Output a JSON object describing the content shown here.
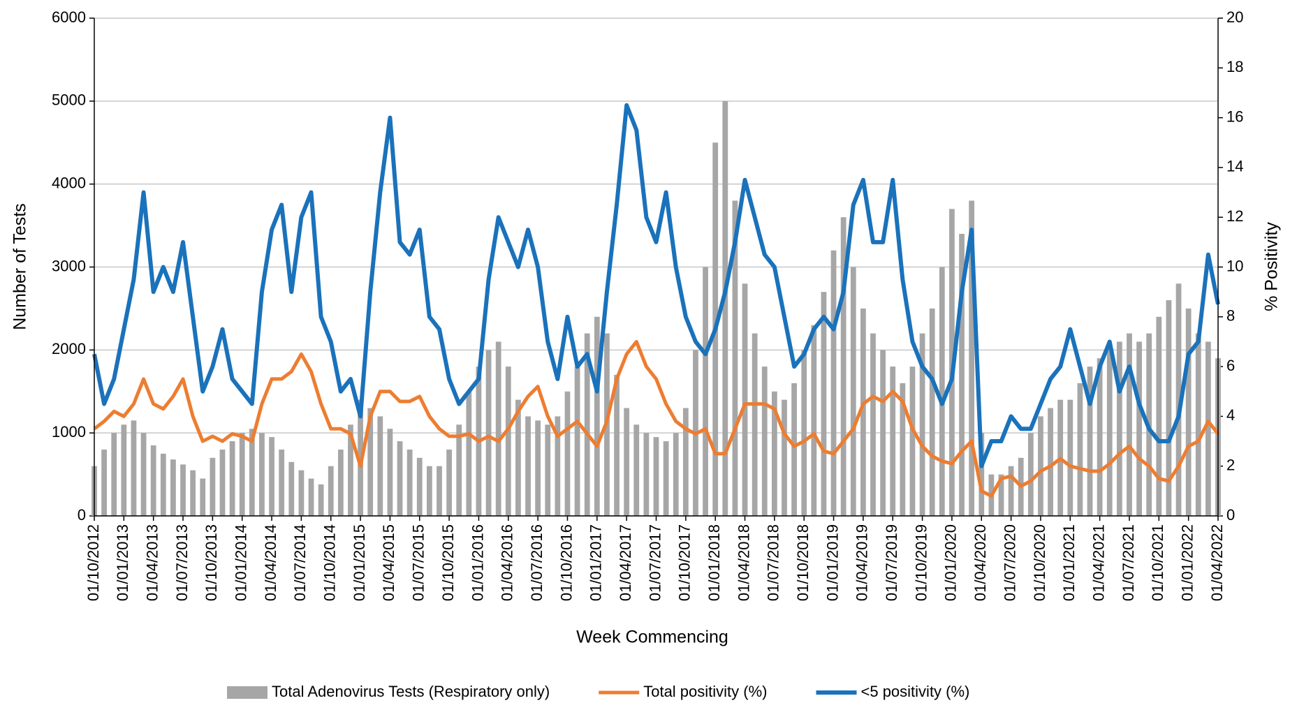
{
  "chart_data": {
    "type": "bar",
    "x_label": "Week Commencing",
    "y_label": "Number of Tests",
    "y2_label": "% Positivity",
    "categories": [
      "01/10/2012",
      null,
      null,
      "01/01/2013",
      null,
      null,
      "01/04/2013",
      null,
      null,
      "01/07/2013",
      null,
      null,
      "01/10/2013",
      null,
      null,
      "01/01/2014",
      null,
      null,
      "01/04/2014",
      null,
      null,
      "01/07/2014",
      null,
      null,
      "01/10/2014",
      null,
      null,
      "01/01/2015",
      null,
      null,
      "01/04/2015",
      null,
      null,
      "01/07/2015",
      null,
      null,
      "01/10/2015",
      null,
      null,
      "01/01/2016",
      null,
      null,
      "01/04/2016",
      null,
      null,
      "01/07/2016",
      null,
      null,
      "01/10/2016",
      null,
      null,
      "01/01/2017",
      null,
      null,
      "01/04/2017",
      null,
      null,
      "01/07/2017",
      null,
      null,
      "01/10/2017",
      null,
      null,
      "01/01/2018",
      null,
      null,
      "01/04/2018",
      null,
      null,
      "01/07/2018",
      null,
      null,
      "01/10/2018",
      null,
      null,
      "01/01/2019",
      null,
      null,
      "01/04/2019",
      null,
      null,
      "01/07/2019",
      null,
      null,
      "01/10/2019",
      null,
      null,
      "01/01/2020",
      null,
      null,
      "01/04/2020",
      null,
      null,
      "01/07/2020",
      null,
      null,
      "01/10/2020",
      null,
      null,
      "01/01/2021",
      null,
      null,
      "01/04/2021",
      null,
      null,
      "01/07/2021",
      null,
      null,
      "01/10/2021",
      null,
      null,
      "01/01/2022",
      null,
      null,
      "01/04/2022"
    ],
    "series": [
      {
        "name": "Total Adenovirus Tests (Respiratory only)",
        "color": "#a6a6a6",
        "type": "bar",
        "values": [
          600,
          800,
          1000,
          1100,
          1150,
          1000,
          850,
          750,
          680,
          620,
          550,
          450,
          700,
          800,
          900,
          1000,
          1050,
          1000,
          950,
          800,
          650,
          550,
          450,
          380,
          600,
          800,
          1100,
          1400,
          1300,
          1200,
          1050,
          900,
          800,
          700,
          600,
          600,
          800,
          1100,
          1500,
          1800,
          2000,
          2100,
          1800,
          1400,
          1200,
          1150,
          1100,
          1200,
          1500,
          1800,
          2200,
          2400,
          2200,
          1700,
          1300,
          1100,
          1000,
          950,
          900,
          1000,
          1300,
          2000,
          3000,
          4500,
          5000,
          3800,
          2800,
          2200,
          1800,
          1500,
          1400,
          1600,
          2000,
          2300,
          2700,
          3200,
          3600,
          3000,
          2500,
          2200,
          2000,
          1800,
          1600,
          1800,
          2200,
          2500,
          3000,
          3700,
          3400,
          3800,
          1000,
          500,
          500,
          600,
          700,
          1000,
          1200,
          1300,
          1400,
          1400,
          1600,
          1800,
          1900,
          2000,
          2100,
          2200,
          2100,
          2200,
          2400,
          2600,
          2800,
          2500,
          2200,
          2100,
          1900
        ]
      },
      {
        "name": "Total positivity (%)",
        "color": "#ed7d31",
        "type": "line",
        "axis": "y2",
        "values": [
          3.5,
          3.8,
          4.2,
          4.0,
          4.5,
          5.5,
          4.5,
          4.3,
          4.8,
          5.5,
          4.0,
          3.0,
          3.2,
          3.0,
          3.3,
          3.2,
          3.0,
          4.5,
          5.5,
          5.5,
          5.8,
          6.5,
          5.8,
          4.5,
          3.5,
          3.5,
          3.3,
          2.0,
          4.0,
          5.0,
          5.0,
          4.6,
          4.6,
          4.8,
          4.0,
          3.5,
          3.2,
          3.2,
          3.3,
          3.0,
          3.2,
          3.0,
          3.5,
          4.2,
          4.8,
          5.2,
          4.0,
          3.2,
          3.5,
          3.8,
          3.3,
          2.8,
          3.8,
          5.5,
          6.5,
          7.0,
          6.0,
          5.5,
          4.5,
          3.8,
          3.5,
          3.3,
          3.5,
          2.5,
          2.5,
          3.5,
          4.5,
          4.5,
          4.5,
          4.3,
          3.3,
          2.8,
          3.0,
          3.3,
          2.6,
          2.5,
          3.0,
          3.5,
          4.5,
          4.8,
          4.6,
          5.0,
          4.6,
          3.5,
          2.8,
          2.4,
          2.2,
          2.1,
          2.6,
          3.0,
          1.0,
          0.8,
          1.5,
          1.6,
          1.2,
          1.4,
          1.8,
          2.0,
          2.3,
          2.0,
          1.9,
          1.8,
          1.8,
          2.1,
          2.5,
          2.8,
          2.3,
          2.0,
          1.5,
          1.4,
          2.0,
          2.8,
          3.0,
          3.8,
          3.3
        ]
      },
      {
        "name": "<5 positivity (%)",
        "color": "#1a72bb",
        "type": "line",
        "axis": "y2",
        "values": [
          6.5,
          4.5,
          5.5,
          7.5,
          9.5,
          13.0,
          9.0,
          10.0,
          9.0,
          11.0,
          8.0,
          5.0,
          6.0,
          7.5,
          5.5,
          5.0,
          4.5,
          9.0,
          11.5,
          12.5,
          9.0,
          12.0,
          13.0,
          8.0,
          7.0,
          5.0,
          5.5,
          4.0,
          9.0,
          13.0,
          16.0,
          11.0,
          10.5,
          11.5,
          8.0,
          7.5,
          5.5,
          4.5,
          5.0,
          5.5,
          9.5,
          12.0,
          11.0,
          10.0,
          11.5,
          10.0,
          7.0,
          5.5,
          8.0,
          6.0,
          6.5,
          5.0,
          9.0,
          12.5,
          16.5,
          15.5,
          12.0,
          11.0,
          13.0,
          10.0,
          8.0,
          7.0,
          6.5,
          7.5,
          9.0,
          11.0,
          13.5,
          12.0,
          10.5,
          10.0,
          8.0,
          6.0,
          6.5,
          7.5,
          8.0,
          7.5,
          9.0,
          12.5,
          13.5,
          11.0,
          11.0,
          13.5,
          9.5,
          7.0,
          6.0,
          5.5,
          4.5,
          5.5,
          9.0,
          11.5,
          2.0,
          3.0,
          3.0,
          4.0,
          3.5,
          3.5,
          4.5,
          5.5,
          6.0,
          7.5,
          6.0,
          4.5,
          6.0,
          7.0,
          5.0,
          6.0,
          4.5,
          3.5,
          3.0,
          3.0,
          4.0,
          6.5,
          7.0,
          10.5,
          8.5
        ]
      }
    ],
    "ylim": [
      0,
      6000
    ],
    "yticks": [
      0,
      1000,
      2000,
      3000,
      4000,
      5000,
      6000
    ],
    "y2lim": [
      0,
      20
    ],
    "y2ticks": [
      0,
      2,
      4,
      6,
      8,
      10,
      12,
      14,
      16,
      18,
      20
    ],
    "grid": true,
    "legend": "bottom"
  }
}
